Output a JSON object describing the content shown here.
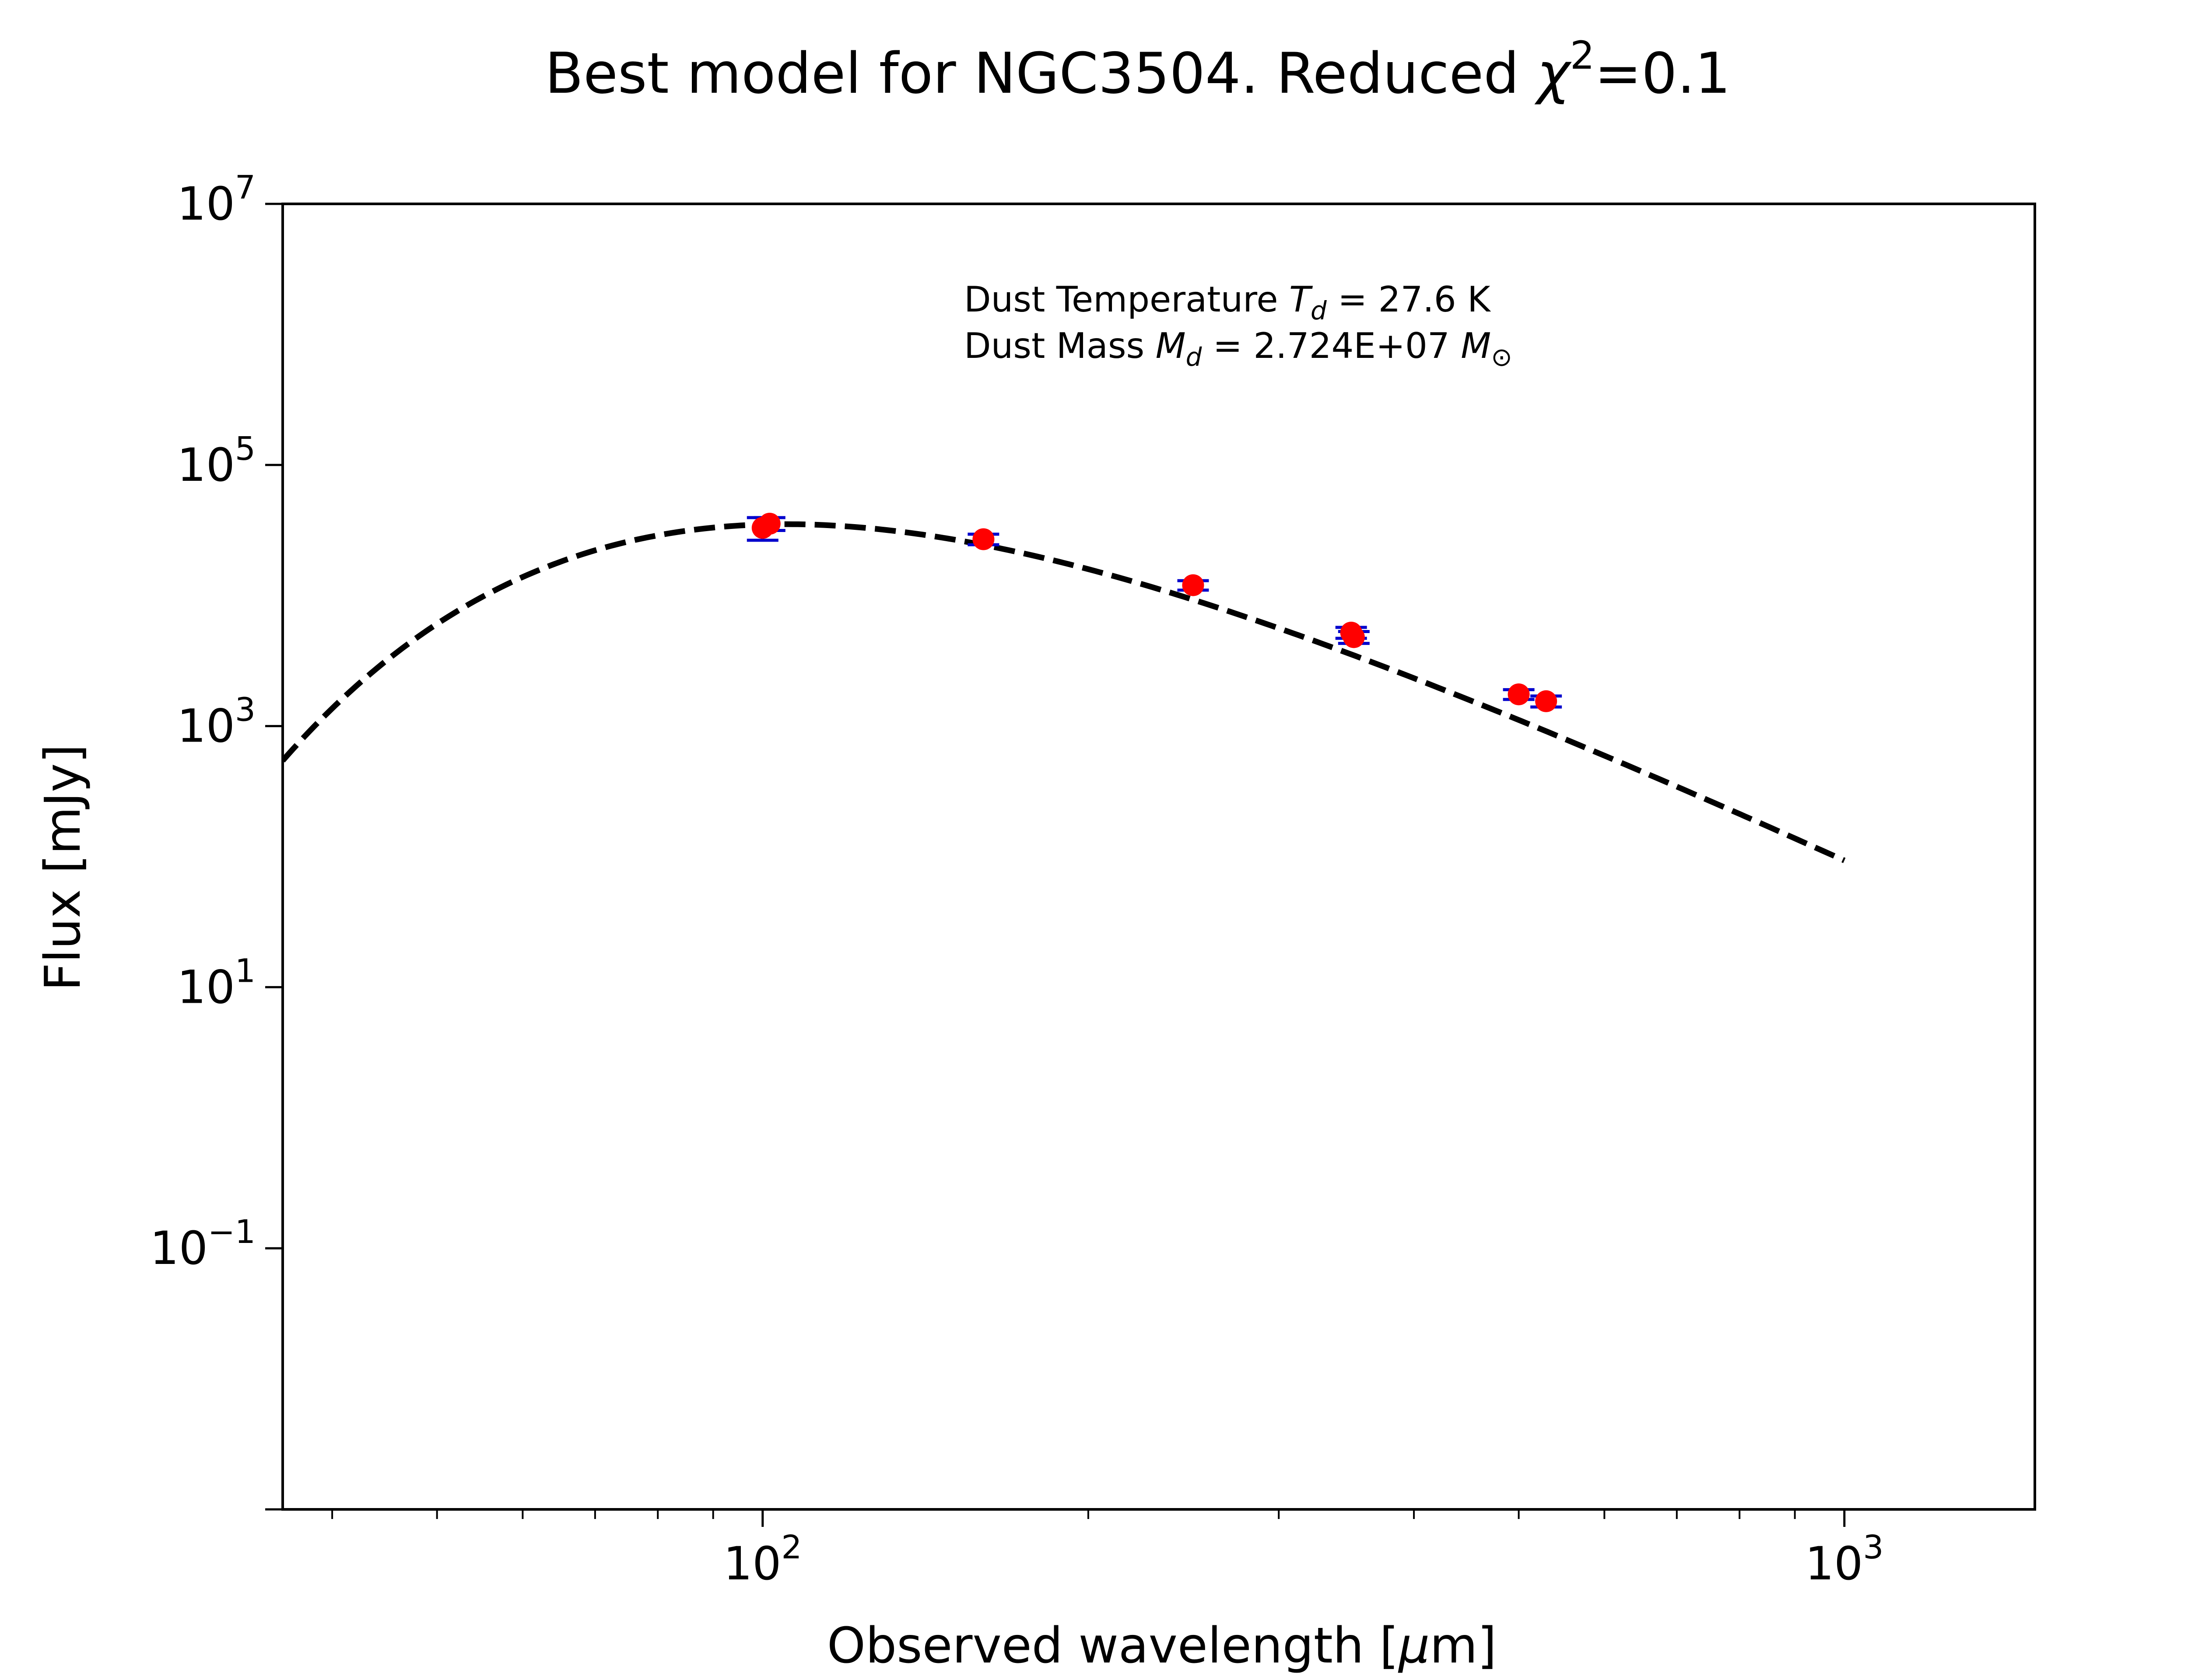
{
  "chart_data": {
    "type": "scatter",
    "title_prefix": "Best model for NGC3504. Reduced ",
    "title_chi": "χ",
    "title_chi_exp": "2",
    "title_suffix": "=0.1",
    "xlabel_prefix": "Observed wavelength [",
    "xlabel_mu": "μ",
    "xlabel_suffix": "m]",
    "ylabel": "Flux [mJy]",
    "x_scale": "log",
    "y_scale": "log",
    "xlim": [
      36,
      1500
    ],
    "ylim": [
      0.001,
      10000000
    ],
    "grid": false,
    "x_ticks": [
      {
        "value": 100,
        "base": "10",
        "exp": "2"
      },
      {
        "value": 1000,
        "base": "10",
        "exp": "3"
      }
    ],
    "y_ticks": [
      {
        "value": 10000000,
        "base": "10",
        "exp": "7"
      },
      {
        "value": 100000,
        "base": "10",
        "exp": "5"
      },
      {
        "value": 1000,
        "base": "10",
        "exp": "3"
      },
      {
        "value": 10,
        "base": "10",
        "exp": "1"
      },
      {
        "value": 0.1,
        "base": "10",
        "exp": "−1"
      }
    ],
    "annotation": {
      "line1_prefix": "Dust Temperature ",
      "line1_var": "T",
      "line1_sub": "d",
      "line1_value": " = 27.6 K",
      "line2_prefix": "Dust Mass ",
      "line2_var": "M",
      "line2_sub": "d",
      "line2_value": " = 2.724E+07 ",
      "line2_unit": "M",
      "line2_unit_sub": "⊙"
    },
    "model": {
      "style": "dashed",
      "color": "#000000",
      "temperature_K": 27.6,
      "beta": 2.0,
      "norm_wavelength_um": 100,
      "norm_flux_mJy": 35000,
      "x_range": [
        36,
        1000
      ]
    },
    "points": [
      {
        "x": 100,
        "y": 33000,
        "yerr": 6500
      },
      {
        "x": 101.5,
        "y": 35500,
        "yerr": 4000
      },
      {
        "x": 160,
        "y": 27000,
        "yerr": 2500
      },
      {
        "x": 250,
        "y": 12000,
        "yerr": 1000
      },
      {
        "x": 350,
        "y": 5200,
        "yerr": 500
      },
      {
        "x": 352,
        "y": 4800,
        "yerr": 500
      },
      {
        "x": 500,
        "y": 1750,
        "yerr": 150
      },
      {
        "x": 530,
        "y": 1550,
        "yerr": 150
      }
    ],
    "marker_color": "#ff0000",
    "errorbar_color": "#0000cc"
  }
}
